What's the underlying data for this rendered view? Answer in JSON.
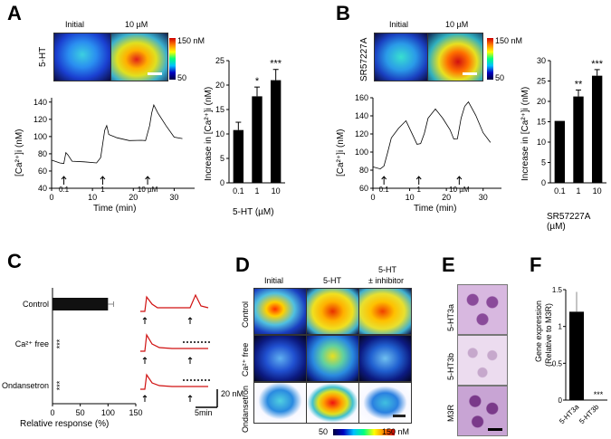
{
  "panels": {
    "A": "A",
    "B": "B",
    "C": "C",
    "D": "D",
    "E": "E",
    "F": "F"
  },
  "A": {
    "row_label": "5-HT",
    "img_labels": [
      "Initial",
      "10 µM"
    ],
    "scale_max": "150 nM",
    "scale_min": "50",
    "trace": {
      "ylabel": "[Ca²⁺]i (nM)",
      "xlabel": "Time (min)",
      "yticks": [
        "140",
        "120",
        "100",
        "80",
        "60",
        "40"
      ],
      "xticks": [
        "0",
        "10",
        "20",
        "30"
      ],
      "stim_labels": [
        "0.1",
        "1",
        "10 µM"
      ]
    },
    "bar": {
      "ylabel": "Increase in [Ca²⁺]i (nM)",
      "xlabel": "5-HT (µM)",
      "yticks": [
        "25",
        "20",
        "15",
        "10",
        "5",
        "0"
      ],
      "sig": [
        "*",
        "***"
      ]
    }
  },
  "B": {
    "row_label": "SR57227A",
    "img_labels": [
      "Initial",
      "10 µM"
    ],
    "scale_max": "150 nM",
    "scale_min": "50",
    "trace": {
      "ylabel": "[Ca²⁺]i (nM)",
      "xlabel": "Time (min)",
      "yticks": [
        "160",
        "140",
        "120",
        "100",
        "80",
        "60"
      ],
      "xticks": [
        "0",
        "10",
        "20",
        "30"
      ],
      "stim_labels": [
        "0.1",
        "1",
        "10 µM"
      ]
    },
    "bar": {
      "ylabel": "Increase in [Ca²⁺]i (nM)",
      "xlabel": "SR57227A (µM)",
      "yticks": [
        "30",
        "25",
        "20",
        "15",
        "10",
        "5",
        "0"
      ],
      "sig": [
        "**",
        "***"
      ]
    }
  },
  "C": {
    "rows": [
      "Control",
      "Ca²⁺ free",
      "Ondansetron"
    ],
    "xticks": [
      "0",
      "50",
      "100",
      "150"
    ],
    "xlabel": "Relative response (%)",
    "sig": [
      "***",
      "***"
    ],
    "scale_y": "20 nM",
    "scale_x": "5min"
  },
  "D": {
    "cols": [
      "Initial",
      "5-HT",
      "5-HT",
      "± inhibitor"
    ],
    "rows": [
      "Control",
      "Ca²⁺ free",
      "Ondansetron"
    ],
    "scale_min": "50",
    "scale_max": "150 nM"
  },
  "E": {
    "rows": [
      "5-HT3a",
      "5-HT3b",
      "M3R"
    ]
  },
  "F": {
    "ylabel1": "Gene expression",
    "ylabel2": "(Relative to M3R)",
    "yticks": [
      "1.5",
      "1",
      "0.5",
      "0"
    ],
    "categories": [
      "5-HT3a",
      "5-HT3b"
    ],
    "sig": "***"
  },
  "chart_data": [
    {
      "panel": "A-bar",
      "type": "bar",
      "categories": [
        "0.1",
        "1",
        "10"
      ],
      "values": [
        10.8,
        17.7,
        21.0
      ],
      "errors": [
        1.6,
        1.9,
        2.2
      ],
      "ylim": [
        0,
        25
      ],
      "title": "",
      "xlabel": "5-HT (µM)",
      "ylabel": "Increase in [Ca²⁺]i (nM)"
    },
    {
      "panel": "B-bar",
      "type": "bar",
      "categories": [
        "0.1",
        "1",
        "10"
      ],
      "values": [
        15.2,
        21.2,
        26.3
      ],
      "errors": [
        0,
        1.6,
        1.5
      ],
      "ylim": [
        0,
        30
      ],
      "title": "",
      "xlabel": "SR57227A (µM)",
      "ylabel": "Increase in [Ca²⁺]i (nM)"
    },
    {
      "panel": "C-bar",
      "type": "bar",
      "orientation": "horizontal",
      "categories": [
        "Control",
        "Ca²⁺ free",
        "Ondansetron"
      ],
      "values": [
        100,
        2,
        2
      ],
      "errors": [
        10,
        0,
        0
      ],
      "xlim": [
        0,
        150
      ],
      "xlabel": "Relative response (%)"
    },
    {
      "panel": "F-bar",
      "type": "bar",
      "categories": [
        "5-HT3a",
        "5-HT3b"
      ],
      "values": [
        1.2,
        0.0
      ],
      "errors": [
        0.27,
        0
      ],
      "ylim": [
        0,
        1.5
      ],
      "ylabel": "Gene expression (Relative to M3R)"
    },
    {
      "panel": "A-trace",
      "type": "line",
      "xlim": [
        0,
        35
      ],
      "ylim": [
        40,
        145
      ],
      "x": [
        0,
        2,
        3,
        3.5,
        4,
        5,
        8,
        11,
        12,
        13,
        13.5,
        14,
        16,
        19,
        22,
        23,
        24,
        24.5,
        25,
        26,
        28,
        30,
        32
      ],
      "y": [
        72,
        70,
        68,
        82,
        78,
        72,
        70,
        70,
        75,
        108,
        112,
        103,
        98,
        96,
        95,
        96,
        112,
        128,
        136,
        128,
        112,
        100,
        97
      ]
    },
    {
      "panel": "B-trace",
      "type": "line",
      "xlim": [
        0,
        35
      ],
      "ylim": [
        60,
        160
      ],
      "x": [
        0,
        2,
        3,
        4,
        5,
        7,
        9,
        11,
        12,
        13,
        14,
        15,
        17,
        19,
        21,
        22,
        23,
        24,
        25,
        26,
        28,
        30,
        32
      ],
      "y": [
        83,
        82,
        84,
        100,
        115,
        127,
        134,
        118,
        108,
        110,
        120,
        138,
        147,
        138,
        124,
        115,
        114,
        138,
        150,
        156,
        140,
        122,
        110
      ]
    }
  ]
}
